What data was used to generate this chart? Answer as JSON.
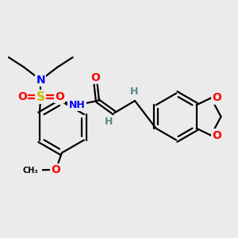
{
  "bg_color": "#ebebeb",
  "bond_color": "#000000",
  "bond_width": 1.6,
  "atom_colors": {
    "N": "#0000ff",
    "O": "#ff0000",
    "S": "#ccbb00",
    "H": "#5a8a8a",
    "C": "#000000"
  },
  "fig_w": 3.0,
  "fig_h": 3.0,
  "dpi": 100
}
